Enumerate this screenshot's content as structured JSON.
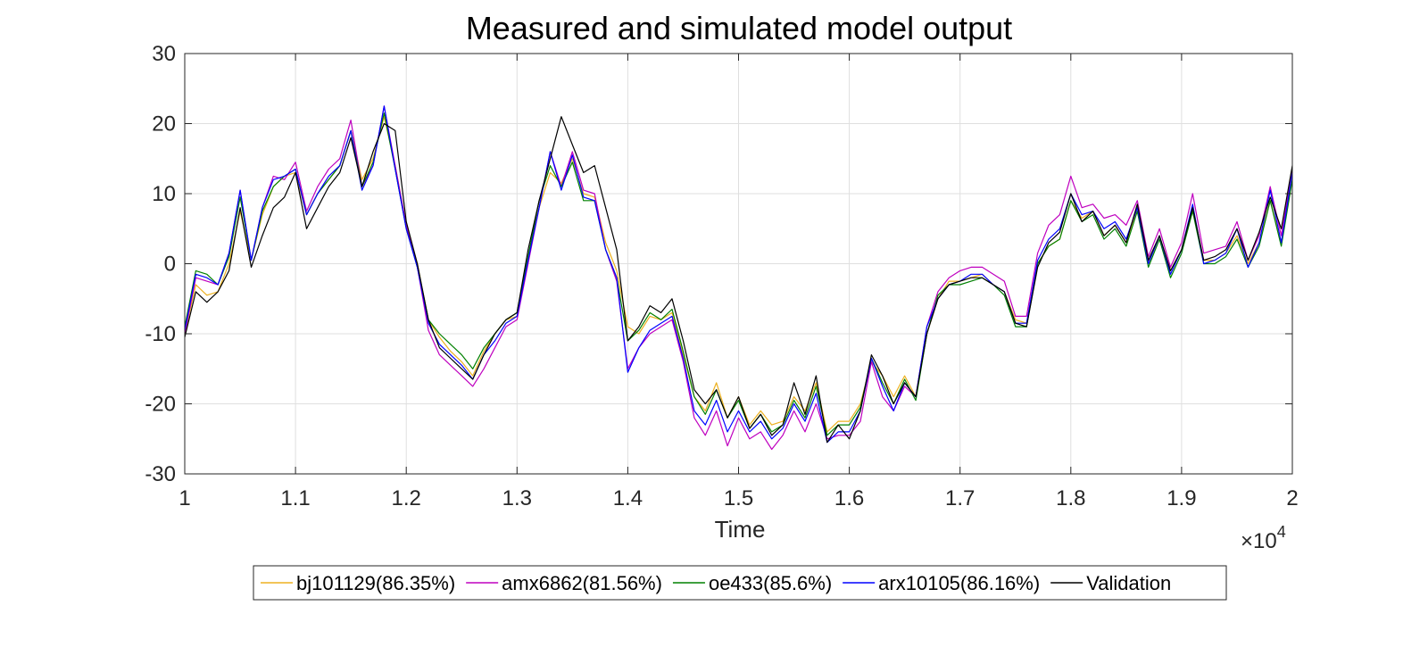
{
  "chart_data": {
    "type": "line",
    "title": "Measured and simulated model output",
    "xlabel": "Time",
    "ylabel": "",
    "xlim": [
      10000,
      20000
    ],
    "ylim": [
      -30,
      30
    ],
    "x_exponent_label": "×10",
    "x_exponent_power": "4",
    "x_ticks": [
      10000,
      11000,
      12000,
      13000,
      14000,
      15000,
      16000,
      17000,
      18000,
      19000,
      20000
    ],
    "x_tick_labels": [
      "1",
      "1.1",
      "1.2",
      "1.3",
      "1.4",
      "1.5",
      "1.6",
      "1.7",
      "1.8",
      "1.9",
      "2"
    ],
    "y_ticks": [
      -30,
      -20,
      -10,
      0,
      10,
      20,
      30
    ],
    "y_tick_labels": [
      "-30",
      "-20",
      "-10",
      "0",
      "10",
      "20",
      "30"
    ],
    "grid": true,
    "legend_position": "bottom-outside",
    "x": [
      10000,
      10100,
      10200,
      10300,
      10400,
      10500,
      10600,
      10700,
      10800,
      10900,
      11000,
      11100,
      11200,
      11300,
      11400,
      11500,
      11600,
      11700,
      11800,
      11900,
      12000,
      12100,
      12200,
      12300,
      12400,
      12500,
      12600,
      12700,
      12800,
      12900,
      13000,
      13100,
      13200,
      13300,
      13400,
      13500,
      13600,
      13700,
      13800,
      13900,
      14000,
      14100,
      14200,
      14300,
      14400,
      14500,
      14600,
      14700,
      14800,
      14900,
      15000,
      15100,
      15200,
      15300,
      15400,
      15500,
      15600,
      15700,
      15800,
      15900,
      16000,
      16100,
      16200,
      16300,
      16400,
      16500,
      16600,
      16700,
      16800,
      16900,
      17000,
      17100,
      17200,
      17300,
      17400,
      17500,
      17600,
      17700,
      17800,
      17900,
      18000,
      18100,
      18200,
      18300,
      18400,
      18500,
      18600,
      18700,
      18800,
      18900,
      19000,
      19100,
      19200,
      19300,
      19400,
      19500,
      19600,
      19700,
      19800,
      19900,
      20000
    ],
    "series": [
      {
        "name": "bj101129(86.35%)",
        "color": "#edb120",
        "values": [
          -10,
          -3,
          -4.5,
          -4,
          0,
          7.5,
          0.5,
          7,
          11,
          12.5,
          13,
          7,
          10,
          12,
          14,
          19,
          12,
          15,
          21,
          14,
          5.5,
          0,
          -8,
          -10.5,
          -12.5,
          -14,
          -16,
          -12.5,
          -10,
          -8,
          -7.5,
          1,
          8,
          13,
          11.5,
          15,
          10,
          9.5,
          3,
          -1,
          -9,
          -10,
          -7.5,
          -8,
          -7,
          -13,
          -19,
          -21,
          -17,
          -22,
          -19,
          -23,
          -21,
          -23,
          -22.5,
          -19,
          -21,
          -17,
          -24,
          -22.5,
          -22.5,
          -20,
          -14,
          -16,
          -19,
          -16,
          -19,
          -10,
          -5,
          -2.5,
          -2.5,
          -2,
          -1.5,
          -3,
          -4,
          -8,
          -8.5,
          0,
          2.5,
          3.5,
          9,
          6.5,
          7.5,
          4,
          5.5,
          3,
          8,
          0,
          4,
          -1,
          2,
          8,
          0.5,
          0.5,
          1.5,
          4,
          0,
          3,
          9,
          3,
          13
        ]
      },
      {
        "name": "amx6862(81.56%)",
        "color": "#bf00bf",
        "values": [
          -10,
          -2,
          -2.5,
          -3,
          1.5,
          10.5,
          0.5,
          8,
          12.5,
          12,
          14.5,
          7.5,
          11,
          13.5,
          15,
          20.5,
          11,
          14,
          22.5,
          14,
          5.5,
          -0.5,
          -9.5,
          -13,
          -14.5,
          -16,
          -17.5,
          -15,
          -12,
          -9,
          -8,
          0,
          8,
          16,
          11,
          16,
          10.5,
          10,
          2,
          -2.5,
          -15,
          -12,
          -10,
          -9,
          -8,
          -14,
          -22,
          -24.5,
          -21,
          -26,
          -22,
          -25,
          -24,
          -26.5,
          -24.5,
          -21,
          -24,
          -20,
          -25,
          -24.5,
          -24.5,
          -22.5,
          -14,
          -19,
          -21,
          -17.5,
          -19,
          -9,
          -4,
          -2,
          -1,
          -0.5,
          -0.5,
          -1.5,
          -2.5,
          -7.5,
          -7.5,
          1.5,
          5.5,
          7,
          12.5,
          8,
          8.5,
          6.5,
          7,
          5.5,
          9,
          1,
          5,
          -0.5,
          3,
          10,
          1.5,
          2,
          2.5,
          6,
          0.5,
          4,
          11,
          4,
          13.5
        ]
      },
      {
        "name": "oe433(85.6%)",
        "color": "#008000",
        "values": [
          -9,
          -1,
          -1.5,
          -3,
          1,
          9.5,
          0.5,
          7.5,
          11,
          12.5,
          13.5,
          7,
          10,
          12,
          14,
          19,
          11,
          14.5,
          21.5,
          13.5,
          5,
          -0.5,
          -8,
          -10,
          -11.5,
          -13,
          -15,
          -12,
          -10,
          -8,
          -7,
          1,
          9,
          14,
          11,
          14.5,
          9,
          9,
          2,
          -2,
          -11,
          -9.5,
          -7,
          -8,
          -6.5,
          -12.5,
          -19,
          -21.5,
          -18,
          -22,
          -19.5,
          -23.5,
          -21.5,
          -24,
          -23,
          -19.5,
          -22,
          -17.5,
          -24.5,
          -23,
          -23,
          -20.5,
          -13.5,
          -17,
          -20,
          -16.5,
          -19.5,
          -10,
          -4.5,
          -3,
          -3,
          -2.5,
          -2,
          -3,
          -4.5,
          -9,
          -9,
          0,
          2.5,
          3.5,
          9,
          6,
          7,
          3.5,
          5,
          2.5,
          7.5,
          -0.5,
          3.5,
          -2,
          1.5,
          7.5,
          0,
          0,
          1,
          3.5,
          -0.5,
          2.5,
          9,
          2.5,
          12
        ]
      },
      {
        "name": "arx10105(86.16%)",
        "color": "#0000ff",
        "values": [
          -9.5,
          -1.5,
          -2,
          -3,
          1.5,
          10.5,
          0.5,
          8,
          12,
          12.5,
          13.5,
          7,
          10,
          12.5,
          14,
          19,
          10.5,
          14,
          22.5,
          13.5,
          5,
          -0.5,
          -8.5,
          -11.5,
          -13,
          -14.5,
          -16.5,
          -13,
          -11,
          -8.5,
          -7.5,
          0.5,
          8,
          16,
          10.5,
          15.5,
          9.5,
          9,
          2,
          -2,
          -15.5,
          -12,
          -9.5,
          -8.5,
          -7.5,
          -13.5,
          -21,
          -23,
          -19.5,
          -24,
          -21,
          -24,
          -22.5,
          -25,
          -23.5,
          -20,
          -22.5,
          -18.5,
          -25.5,
          -24,
          -24,
          -21,
          -13.5,
          -17.5,
          -21,
          -17,
          -19,
          -9,
          -5,
          -3,
          -2.5,
          -1.5,
          -1.5,
          -3,
          -4,
          -8.5,
          -8.5,
          0.5,
          3.5,
          5,
          10,
          7,
          7.5,
          5,
          6,
          3.5,
          8,
          0,
          4,
          -1.5,
          2,
          8.5,
          0,
          0.5,
          1.5,
          5,
          -0.5,
          3,
          10.5,
          3,
          13
        ]
      },
      {
        "name": "Validation",
        "color": "#000000",
        "values": [
          -10.5,
          -4,
          -5.5,
          -4,
          -1,
          8,
          -0.5,
          4,
          8,
          9.5,
          13,
          5,
          8,
          11,
          13,
          18,
          11,
          16,
          20,
          19,
          6,
          0,
          -8,
          -12,
          -13.5,
          -15,
          -16.5,
          -13,
          -10,
          -8,
          -7,
          2,
          9,
          15,
          21,
          17,
          13,
          14,
          8,
          2,
          -11,
          -9,
          -6,
          -7,
          -5,
          -11,
          -18,
          -20,
          -18,
          -22,
          -19,
          -23.5,
          -21.5,
          -24.5,
          -23,
          -17,
          -21.5,
          -16,
          -25.5,
          -23,
          -25,
          -21,
          -13,
          -16,
          -20,
          -17,
          -19,
          -10,
          -5,
          -3,
          -2.5,
          -2,
          -2,
          -3,
          -4,
          -8.5,
          -9,
          -0.5,
          3,
          4.5,
          10,
          6,
          7.5,
          4,
          5.5,
          3,
          8.5,
          0.5,
          4,
          -1,
          2,
          8,
          0.5,
          1,
          2,
          5,
          0.5,
          4.5,
          9.5,
          5,
          14
        ]
      }
    ]
  }
}
